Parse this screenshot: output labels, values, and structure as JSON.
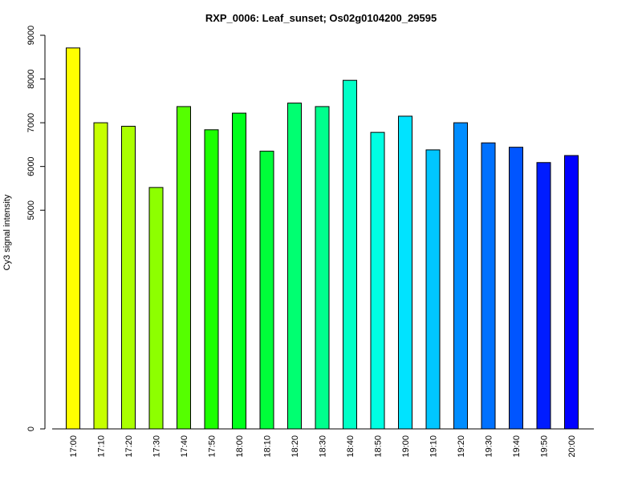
{
  "chart_data": {
    "type": "bar",
    "title": "RXP_0006: Leaf_sunset; Os02g0104200_29595",
    "xlabel": "",
    "ylabel": "Cy3 signal intensity",
    "ylim": [
      0,
      9000
    ],
    "yticks": [
      0,
      5000,
      6000,
      7000,
      8000,
      9000
    ],
    "categories": [
      "17:00",
      "17:10",
      "17:20",
      "17:30",
      "17:40",
      "17:50",
      "18:00",
      "18:10",
      "18:20",
      "18:30",
      "18:40",
      "18:50",
      "19:00",
      "19:10",
      "19:20",
      "19:30",
      "19:40",
      "19:50",
      "20:00"
    ],
    "values": [
      8710,
      7000,
      6920,
      5520,
      7370,
      6840,
      7220,
      6350,
      7450,
      7370,
      7970,
      6780,
      7150,
      6380,
      7000,
      6540,
      6440,
      6090,
      6250
    ],
    "colors": [
      "#FFFF00",
      "#C6FF00",
      "#AAFF00",
      "#8DFF00",
      "#55FF00",
      "#1CFF00",
      "#00FF1C",
      "#00FF39",
      "#00FF71",
      "#00FF8D",
      "#00FFC6",
      "#00FFE3",
      "#00E3FF",
      "#00C6FF",
      "#008DFF",
      "#0071FF",
      "#0055FF",
      "#001CFF",
      "#0000FF"
    ],
    "grid": false,
    "legend": "none"
  }
}
